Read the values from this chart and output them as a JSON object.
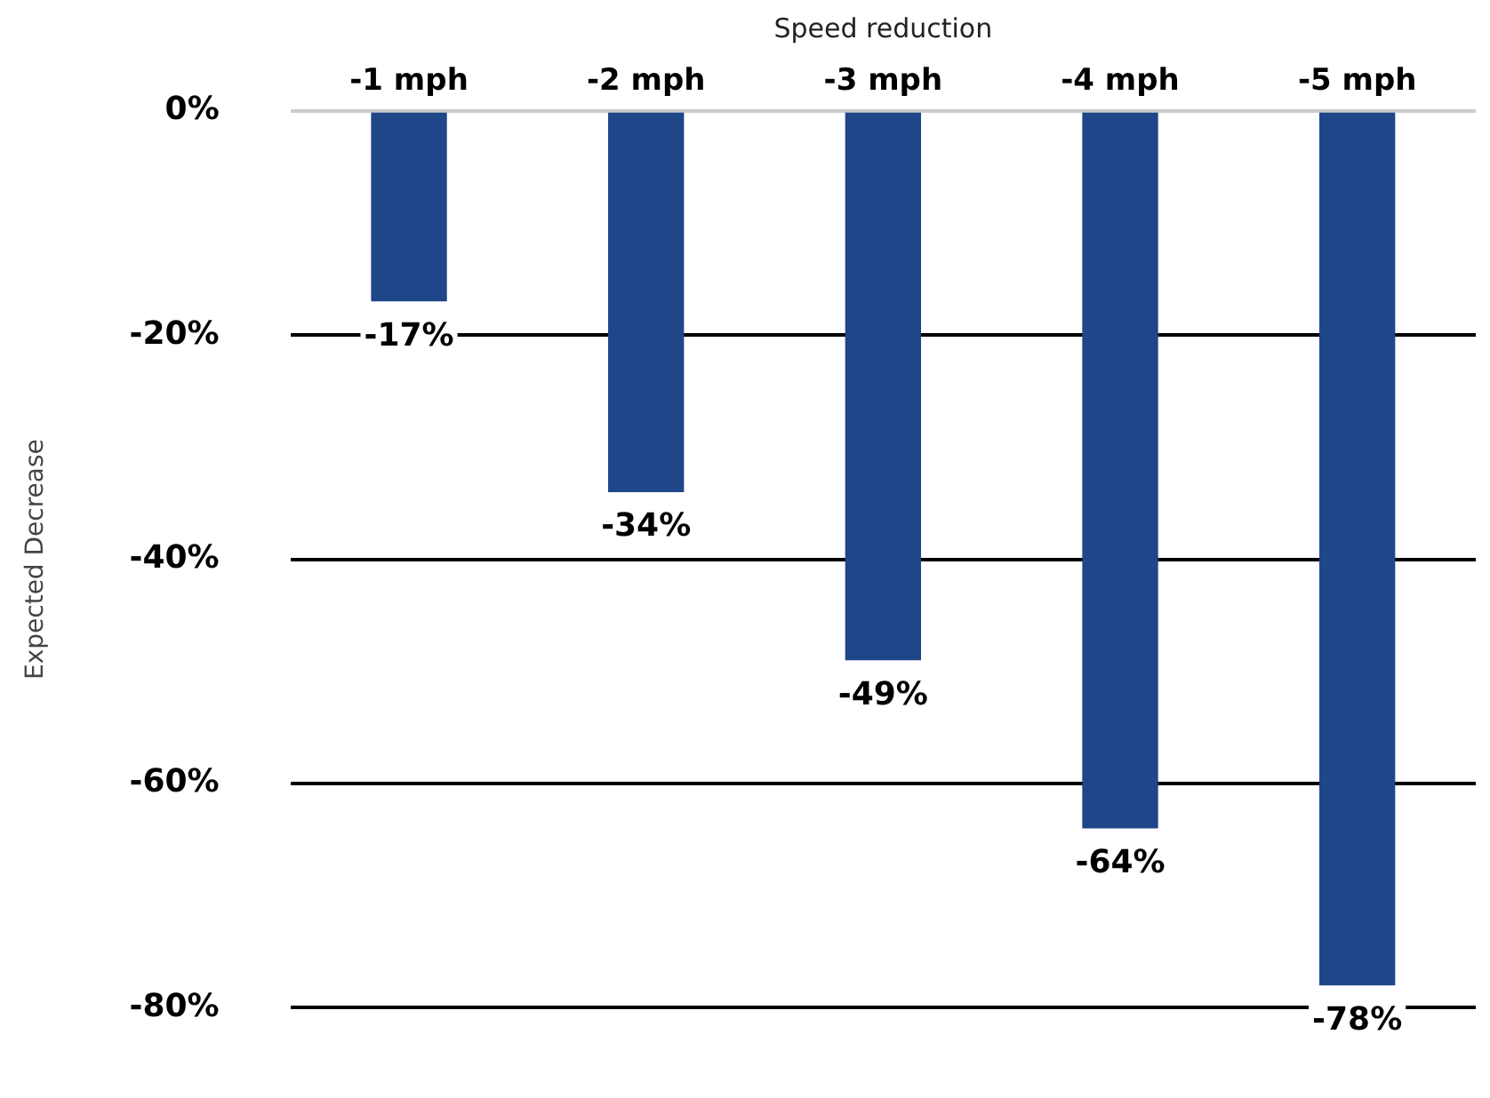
{
  "chart_data": {
    "type": "bar",
    "xlabel": "Speed reduction",
    "ylabel": "Expected Decrease",
    "categories": [
      "-1 mph",
      "-2 mph",
      "-3 mph",
      "-4 mph",
      "-5 mph"
    ],
    "values": [
      -17,
      -34,
      -49,
      -64,
      -78
    ],
    "value_labels": [
      "-17%",
      "-34%",
      "-49%",
      "-64%",
      "-78%"
    ],
    "color": "#1f4688",
    "ylim": [
      -80,
      0
    ],
    "yticks": [
      {
        "value": 0,
        "label": "0%"
      },
      {
        "value": -20,
        "label": "-20%"
      },
      {
        "value": -40,
        "label": "-40%"
      },
      {
        "value": -60,
        "label": "-60%"
      },
      {
        "value": -80,
        "label": "-80%"
      }
    ],
    "grid": "y",
    "legend": false
  }
}
